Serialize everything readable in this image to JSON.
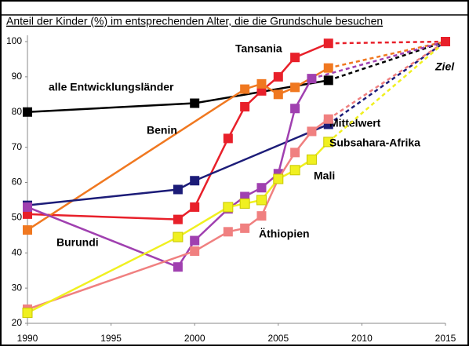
{
  "chart_data": {
    "type": "line",
    "title": "Anteil der Kinder (%) im entsprechenden Alter, die die Grundschule besuchen",
    "xlim": [
      1990,
      2015
    ],
    "xticks": [
      1990,
      1995,
      2000,
      2005,
      2010,
      2015
    ],
    "ylim": [
      20,
      100
    ],
    "yticks": [
      20,
      30,
      40,
      50,
      60,
      70,
      80,
      90,
      100
    ],
    "series": [
      {
        "name": "alle Entwicklungsländer",
        "color": "#000000",
        "x": [
          1990,
          2000,
          2008
        ],
        "values": [
          80,
          82.5,
          89
        ]
      },
      {
        "name": "Tansania",
        "color": "#e8202a",
        "x": [
          1990,
          1999,
          2000,
          2002,
          2003,
          2004,
          2005,
          2006,
          2008
        ],
        "values": [
          51,
          49.5,
          53,
          72.5,
          81.5,
          86,
          90,
          95.5,
          99.5
        ]
      },
      {
        "name": "Benin",
        "color": "#f07820",
        "x": [
          1990,
          2003,
          2004,
          2005,
          2006,
          2008
        ],
        "values": [
          46.5,
          86.5,
          88,
          85,
          87,
          92.5
        ]
      },
      {
        "name": "Mittelwert",
        "color": "#1c1c78",
        "x": [
          1990,
          1999,
          2000,
          2008
        ],
        "values": [
          53.5,
          58,
          60.5,
          76.5
        ]
      },
      {
        "name": "Burundi",
        "color": "#a040b0",
        "x": [
          1990,
          1999,
          2000,
          2002,
          2003,
          2004,
          2005,
          2006,
          2007
        ],
        "values": [
          53,
          36,
          43.5,
          52.5,
          56,
          58.5,
          62.5,
          81,
          89.5
        ]
      },
      {
        "name": "Äthiopien",
        "color": "#f08080",
        "x": [
          1990,
          2000,
          2002,
          2003,
          2004,
          2005,
          2006,
          2007,
          2008
        ],
        "values": [
          24,
          40.5,
          46,
          47,
          50.5,
          61,
          68.5,
          74.5,
          78
        ]
      },
      {
        "name": "Subsahara-Afrika",
        "color": "#f0f020",
        "x": [
          1990,
          1999,
          2002,
          2003,
          2004,
          2005,
          2006,
          2007,
          2008
        ],
        "values": [
          23,
          44.5,
          53,
          54,
          55,
          61,
          63.5,
          66.5,
          71.5
        ]
      }
    ],
    "goal": {
      "label": "Ziel",
      "x": 2015,
      "value": 100,
      "color": "#e8202a"
    },
    "annotations": [
      "Mali"
    ]
  }
}
